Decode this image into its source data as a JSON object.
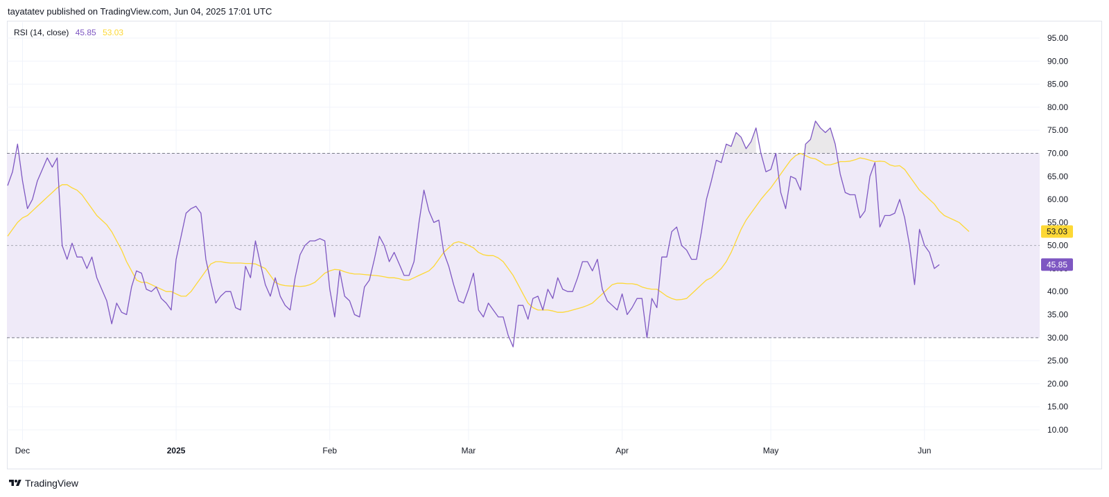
{
  "header": {
    "published": "tayatatev published on TradingView.com, Jun 04, 2025 17:01 UTC"
  },
  "legend": {
    "label": "RSI (14, close)",
    "rsi_value": "45.85",
    "ma_value": "53.03"
  },
  "footer": {
    "brand": "TradingView"
  },
  "colors": {
    "rsi": "#7e57c2",
    "ma": "#fdd835",
    "band_fill": "#efeaf8",
    "ob_fill": "#e8e6e8",
    "grid": "#f0f3fa",
    "dashed": "#787b86"
  },
  "chart_data": {
    "type": "line",
    "title": "RSI (14, close)",
    "y_axis": {
      "min": 10,
      "max": 95,
      "step": 5,
      "position": "right",
      "ticks": [
        "95.00",
        "90.00",
        "85.00",
        "80.00",
        "75.00",
        "70.00",
        "65.00",
        "60.00",
        "55.00",
        "50.00",
        "45.00",
        "40.00",
        "35.00",
        "30.00",
        "25.00",
        "20.00",
        "15.00",
        "10.00"
      ]
    },
    "x_axis": {
      "labels": [
        {
          "text": "Dec",
          "t": 6,
          "bold": false
        },
        {
          "text": "2025",
          "t": 37,
          "bold": true
        },
        {
          "text": "Feb",
          "t": 68,
          "bold": false
        },
        {
          "text": "Mar",
          "t": 96,
          "bold": false
        },
        {
          "text": "Apr",
          "t": 127,
          "bold": false
        },
        {
          "text": "May",
          "t": 157,
          "bold": false
        },
        {
          "text": "Jun",
          "t": 188,
          "bold": false
        }
      ],
      "t_min": 3,
      "t_max": 203
    },
    "bands": {
      "upper": 70,
      "middle": 50,
      "lower": 30
    },
    "grid": true,
    "series": [
      {
        "name": "RSI",
        "color": "#7e57c2",
        "start_t": 3,
        "values": [
          63,
          66,
          72,
          64,
          58,
          60,
          64,
          66.5,
          69,
          67,
          69,
          50,
          47,
          50.5,
          47.5,
          47.5,
          45,
          47.5,
          43,
          40.5,
          38,
          33,
          37.5,
          35.5,
          35,
          41,
          44.5,
          44,
          40.5,
          40,
          41,
          38.5,
          37.5,
          36,
          47,
          52,
          57,
          58,
          58.5,
          57,
          47,
          42,
          37.5,
          39,
          40,
          40,
          36.5,
          36,
          45.5,
          43,
          51,
          46,
          41.5,
          39,
          43,
          39,
          37,
          36,
          43,
          48,
          50,
          51,
          51,
          51.5,
          51,
          40.5,
          34.5,
          44.5,
          39,
          38,
          35,
          34.5,
          41,
          42.5,
          47,
          52,
          50,
          46.5,
          48.5,
          46,
          43.5,
          43.5,
          46.5,
          55,
          62,
          57.5,
          55,
          55.5,
          48.5,
          45.5,
          41.5,
          38,
          37.5,
          40.5,
          44,
          36,
          34.5,
          37.5,
          36,
          34.5,
          34.5,
          30.5,
          28,
          37,
          37,
          34,
          38.5,
          39,
          36,
          40.5,
          38.5,
          43,
          40.5,
          40,
          40,
          43,
          46.5,
          46.5,
          44.5,
          47,
          40.5,
          38,
          37,
          36,
          39.5,
          35,
          36.5,
          38.5,
          38.5,
          30,
          38.5,
          36.5,
          47.5,
          47.5,
          53,
          54,
          50,
          49,
          47,
          47,
          53,
          60,
          64,
          68.5,
          68,
          72,
          71.5,
          74.5,
          73.5,
          71,
          72.5,
          75.5,
          70,
          66,
          66.5,
          70,
          61.5,
          58,
          65,
          64.5,
          62,
          72,
          73,
          77,
          75.5,
          74.5,
          75.5,
          72,
          65.5,
          61.5,
          61,
          61,
          56,
          57.5,
          65,
          68,
          54,
          56.5,
          56.5,
          57,
          60,
          56,
          50,
          41.5,
          53.5,
          50,
          48.5,
          45,
          45.85
        ]
      },
      {
        "name": "MA",
        "color": "#fdd835",
        "start_t": 3,
        "values": [
          52,
          53.5,
          55,
          56,
          56.5,
          57.5,
          58.5,
          59.5,
          60.5,
          61.5,
          62.5,
          63.2,
          63.2,
          62.5,
          62,
          61,
          59.5,
          58,
          56.5,
          55.5,
          54.5,
          53,
          51,
          49,
          46.5,
          44.5,
          42.5,
          42,
          42,
          41.5,
          41,
          40.5,
          40,
          40,
          39.5,
          39,
          39,
          40,
          41.5,
          43,
          44.5,
          46,
          46.5,
          46.5,
          46.3,
          46.2,
          46.2,
          46.2,
          46.1,
          46.1,
          46,
          45.5,
          45,
          43.5,
          42,
          41.5,
          41.3,
          41.2,
          41.2,
          41.1,
          41.2,
          41.5,
          42,
          43,
          44,
          44.5,
          44.8,
          44.7,
          44.3,
          44,
          43.8,
          43.8,
          43.7,
          43.6,
          43.5,
          43.4,
          43.2,
          43,
          43,
          42.8,
          42.5,
          42.5,
          43,
          43.5,
          44,
          44.5,
          45.5,
          47,
          48.5,
          49.5,
          50.5,
          50.8,
          50.5,
          50,
          49.5,
          48.5,
          48,
          47.8,
          47.8,
          47.3,
          46.5,
          45,
          43.5,
          41.5,
          39.5,
          37.5,
          36.5,
          36,
          36,
          36,
          35.8,
          35.5,
          35.5,
          35.7,
          36,
          36.3,
          36.6,
          37,
          37.5,
          38.5,
          39.5,
          40.5,
          41.5,
          41.8,
          41.8,
          41.7,
          41.7,
          41.5,
          41,
          40.7,
          40.5,
          40.5,
          39.8,
          39,
          38.5,
          38.2,
          38.3,
          38.5,
          39.5,
          40.5,
          41.5,
          42.5,
          43,
          44,
          45,
          46.5,
          48.5,
          51,
          53.5,
          55.5,
          57,
          58.5,
          60,
          61.3,
          62.5,
          64,
          65.5,
          67,
          68.5,
          69.5,
          70,
          69.5,
          69,
          68.8,
          68.2,
          67.5,
          67.5,
          67.8,
          68.2,
          68.2,
          68.3,
          68.6,
          69,
          68.8,
          68.5,
          68.2,
          68.3,
          68.2,
          67.5,
          67.2,
          67.3,
          66.5,
          65,
          63.5,
          62,
          61,
          60,
          59,
          57.5,
          56.5,
          56,
          55.5,
          55,
          54,
          53.03
        ]
      }
    ],
    "badges": [
      {
        "text": "53.03",
        "value": 53.03,
        "bg": "#fdd835",
        "fg": "#131722"
      },
      {
        "text": "45.85",
        "value": 45.85,
        "bg": "#7e57c2",
        "fg": "#ffffff"
      }
    ]
  }
}
